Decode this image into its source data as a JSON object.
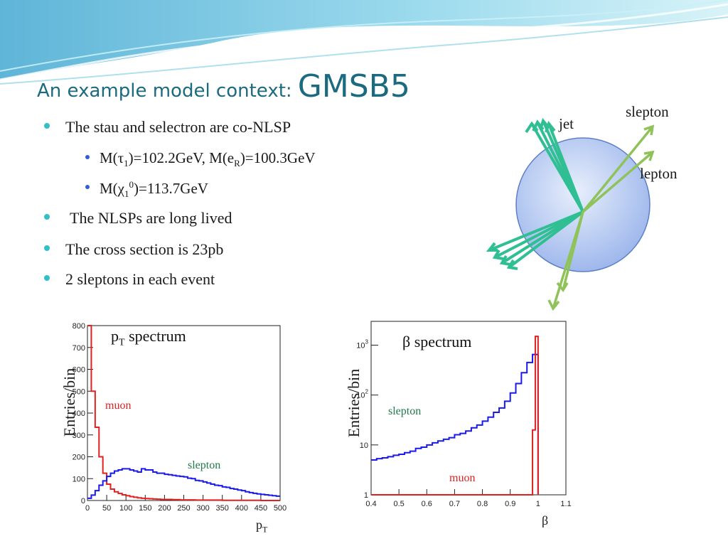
{
  "slide": {
    "title_small": "An example model context:",
    "title_big": "GMSB5",
    "colors": {
      "title": "#1c6a80",
      "bullet_l1": "#2fc0c8",
      "bullet_l2": "#2f5fd0",
      "muon": "#e32020",
      "slepton": "#1a1aee",
      "slepton_label": "#1f7a4a"
    }
  },
  "bullets": {
    "b1": "The stau and selectron are co-NLSP",
    "b1a": {
      "pre": "M(τ",
      "sub1": "1",
      "mid": ")=102.2GeV, M(e",
      "sub2": "R",
      "post": ")=100.3GeV"
    },
    "b1b": {
      "pre": "M(χ",
      "sub": "1",
      "sup": "0",
      "post": ")=113.7GeV"
    },
    "b2": "The NLSPs are long lived",
    "b3": "The cross section is 23pb",
    "b4": "2 sleptons in each event"
  },
  "diagram": {
    "label_jet": "jet",
    "label_slepton": "slepton",
    "label_lepton": "lepton"
  },
  "chart_data": [
    {
      "type": "histogram",
      "title_pre": "p",
      "title_sub": "T",
      "title_post": " spectrum",
      "ylabel": "Entries/bin",
      "xunit_pre": "p",
      "xunit_sub": "T",
      "xlim": [
        0,
        500
      ],
      "ylim": [
        0,
        800
      ],
      "xticks": [
        "0",
        "50",
        "100",
        "150",
        "200",
        "250",
        "300",
        "350",
        "400",
        "450",
        "500"
      ],
      "yticks": [
        "0",
        "100",
        "200",
        "300",
        "400",
        "500",
        "600",
        "700",
        "800"
      ],
      "series": [
        {
          "name": "muon",
          "color": "#e32020",
          "x": [
            0,
            10,
            20,
            30,
            40,
            50,
            60,
            70,
            80,
            90,
            100,
            110,
            120,
            130,
            140,
            150,
            160,
            170,
            180,
            190,
            200,
            220,
            240,
            260,
            280,
            300,
            350,
            400,
            450,
            500
          ],
          "y": [
            800,
            500,
            335,
            200,
            125,
            75,
            52,
            40,
            32,
            26,
            22,
            18,
            15,
            12,
            10,
            9,
            8,
            7,
            6,
            5,
            5,
            4,
            3,
            3,
            2,
            2,
            1,
            1,
            0,
            0
          ]
        },
        {
          "name": "slepton",
          "color": "#1a1aee",
          "x": [
            0,
            10,
            20,
            30,
            40,
            50,
            60,
            70,
            80,
            90,
            100,
            110,
            120,
            130,
            140,
            150,
            160,
            170,
            180,
            190,
            200,
            210,
            220,
            230,
            240,
            250,
            260,
            270,
            280,
            290,
            300,
            310,
            320,
            330,
            340,
            350,
            360,
            370,
            380,
            390,
            400,
            410,
            420,
            430,
            440,
            450,
            460,
            470,
            480,
            490
          ],
          "y": [
            10,
            25,
            45,
            70,
            90,
            110,
            125,
            135,
            140,
            145,
            145,
            140,
            135,
            130,
            145,
            140,
            140,
            130,
            125,
            125,
            120,
            118,
            115,
            112,
            110,
            108,
            102,
            100,
            92,
            90,
            85,
            80,
            75,
            70,
            68,
            62,
            60,
            55,
            52,
            48,
            45,
            40,
            36,
            33,
            30,
            28,
            26,
            24,
            22,
            20
          ]
        }
      ]
    },
    {
      "type": "histogram",
      "title": "β spectrum",
      "ylabel": "Entries/bin",
      "xunit": "β",
      "yscale": "log",
      "xlim": [
        0.4,
        1.1
      ],
      "ylim": [
        1,
        3000
      ],
      "xticks": [
        "0.4",
        "0.5",
        "0.6",
        "0.7",
        "0.8",
        "0.9",
        "1",
        "1.1"
      ],
      "yticks": [
        {
          "base": "1",
          "exp": ""
        },
        {
          "base": "10",
          "exp": ""
        },
        {
          "base": "10",
          "exp": "2"
        },
        {
          "base": "10",
          "exp": "3"
        }
      ],
      "series": [
        {
          "name": "slepton",
          "color": "#1a1aee",
          "x": [
            0.4,
            0.42,
            0.44,
            0.46,
            0.48,
            0.5,
            0.52,
            0.54,
            0.56,
            0.58,
            0.6,
            0.62,
            0.64,
            0.66,
            0.68,
            0.7,
            0.72,
            0.74,
            0.76,
            0.78,
            0.8,
            0.82,
            0.84,
            0.86,
            0.88,
            0.9,
            0.92,
            0.94,
            0.96,
            0.98
          ],
          "y": [
            5,
            5.3,
            5.5,
            5.8,
            6.2,
            6.5,
            7,
            7.5,
            8.5,
            9,
            10,
            11,
            12,
            13,
            14,
            16,
            17,
            19,
            22,
            25,
            30,
            36,
            45,
            55,
            75,
            110,
            170,
            280,
            450,
            650
          ]
        },
        {
          "name": "muon",
          "color": "#e32020",
          "x": [
            0.4,
            0.5,
            0.6,
            0.7,
            0.8,
            0.9,
            0.97,
            0.98,
            0.99,
            1.0
          ],
          "y": [
            1,
            1,
            1,
            1,
            1,
            1,
            1,
            20,
            1500,
            1
          ]
        }
      ]
    }
  ]
}
